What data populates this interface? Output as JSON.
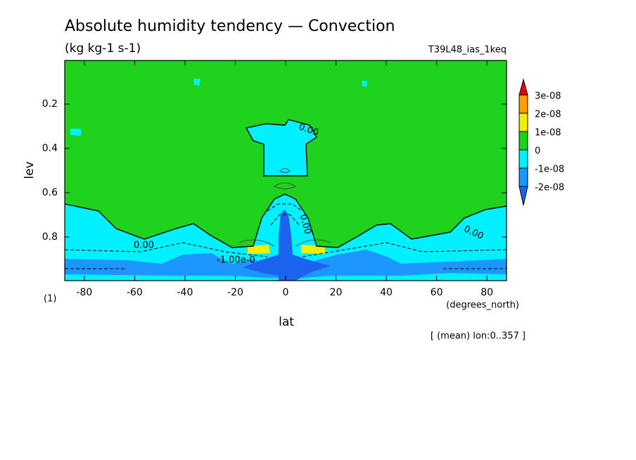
{
  "chart_data": {
    "type": "contour",
    "title": "Absolute humidity tendency — Convection",
    "subtitle": "(kg kg-1 s-1)",
    "experiment": "T39L48_ias_1keq",
    "xlabel": "lat",
    "xunits": "(degrees_north)",
    "ylabel": "lev",
    "yunits": "(1)",
    "note": "[ (mean) lon:0..357 ]",
    "xlim": [
      -87.8,
      87.8
    ],
    "xticks": [
      -80,
      -60,
      -40,
      -20,
      0,
      20,
      40,
      60,
      80
    ],
    "ylim": [
      0.003,
      0.997
    ],
    "yticks": [
      0.2,
      0.4,
      0.6,
      0.8
    ],
    "y_reversed": true,
    "colorbar": {
      "levels": [
        {
          "value": -2e-08,
          "label": "-2e-08"
        },
        {
          "value": -1e-08,
          "label": "-1e-08"
        },
        {
          "value": 0,
          "label": "0"
        },
        {
          "value": 1e-08,
          "label": "1e-08"
        },
        {
          "value": 2e-08,
          "label": "2e-08"
        },
        {
          "value": 3e-08,
          "label": "3e-08"
        }
      ],
      "colors": [
        "#1c64f0",
        "#1e96ff",
        "#00f0ff",
        "#1ed21e",
        "#f0f000",
        "#ffa000",
        "#e60000"
      ]
    },
    "contour_labels": [
      "0.00",
      "0.00",
      "0.00",
      "0.00",
      "-1.00e-0"
    ]
  }
}
